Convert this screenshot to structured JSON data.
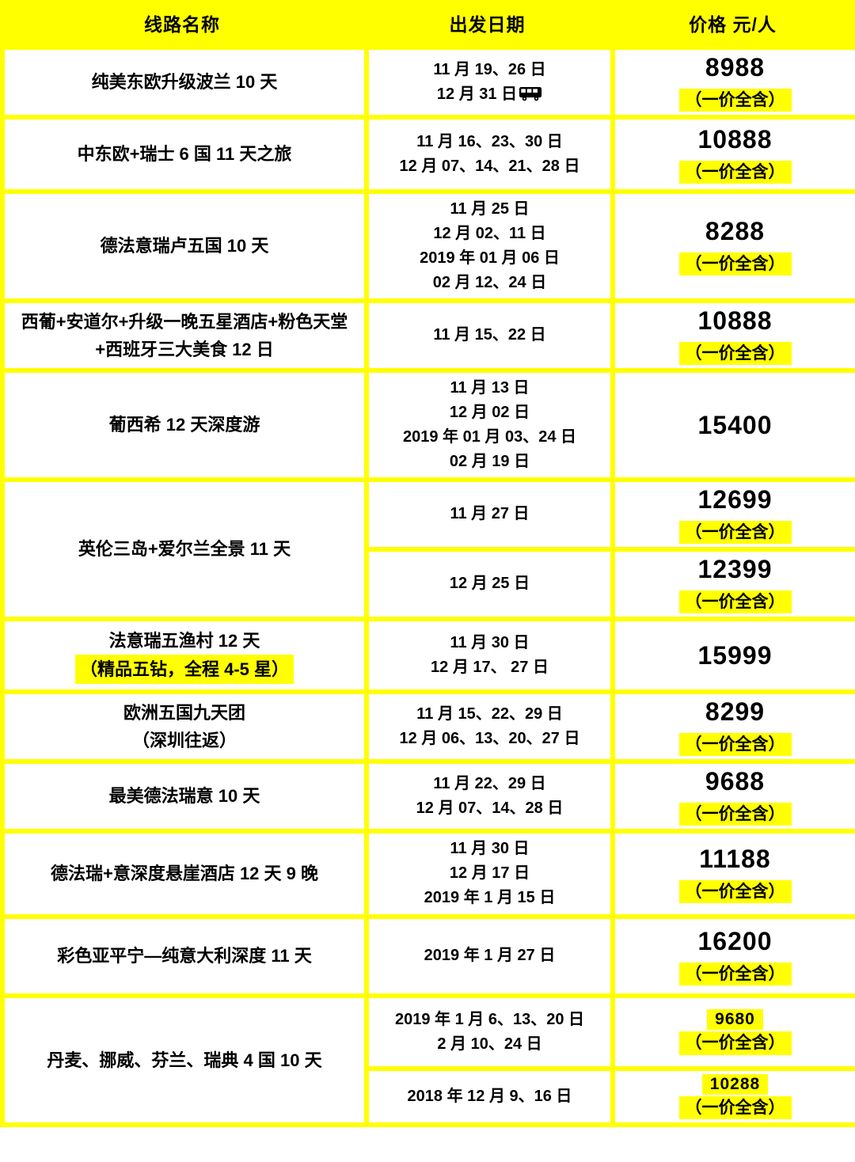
{
  "header": {
    "columns": [
      "线路名称",
      "出发日期",
      "价格 元/人"
    ]
  },
  "colors": {
    "accent_yellow": "#FFFF00",
    "text": "#000000",
    "cell_background": "#FFFFFF"
  },
  "icons": {
    "bus": "bus-icon"
  },
  "table": {
    "rows": [
      {
        "name_lines": [
          {
            "text": "纯美东欧升级波兰 10 天",
            "highlight": false
          }
        ],
        "cells": [
          {
            "dates": [
              "11 月 19、26 日",
              "12 月 31 日"
            ],
            "bus_icon": true,
            "price": "8988",
            "badge": "（一价全含）",
            "price_highlight": false
          }
        ]
      },
      {
        "name_lines": [
          {
            "text": "中东欧+瑞士 6 国 11 天之旅",
            "highlight": false
          }
        ],
        "cells": [
          {
            "dates": [
              "11 月 16、23、30 日",
              "12 月 07、14、21、28 日"
            ],
            "bus_icon": false,
            "price": "10888",
            "badge": "（一价全含）",
            "price_highlight": false
          }
        ]
      },
      {
        "name_lines": [
          {
            "text": "德法意瑞卢五国 10 天",
            "highlight": false
          }
        ],
        "cells": [
          {
            "dates": [
              "11 月 25 日",
              "12 月 02、11 日",
              "2019 年 01 月 06 日",
              "02 月 12、24 日"
            ],
            "bus_icon": false,
            "price": "8288",
            "badge": "（一价全含）",
            "price_highlight": false
          }
        ]
      },
      {
        "name_lines": [
          {
            "text": "西葡+安道尔+升级一晚五星酒店+粉色天堂",
            "highlight": false
          },
          {
            "text": "+西班牙三大美食 12 日",
            "highlight": false
          }
        ],
        "cells": [
          {
            "dates": [
              "11 月 15、22 日"
            ],
            "bus_icon": false,
            "price": "10888",
            "badge": "（一价全含）",
            "price_highlight": false
          }
        ]
      },
      {
        "name_lines": [
          {
            "text": "葡西希 12 天深度游",
            "highlight": false
          }
        ],
        "cells": [
          {
            "dates": [
              "11 月 13 日",
              "12 月 02 日",
              "2019 年 01 月 03、24 日",
              "02 月 19 日"
            ],
            "bus_icon": false,
            "price": "15400",
            "badge": null,
            "price_highlight": false
          }
        ]
      },
      {
        "name_lines": [
          {
            "text": "英伦三岛+爱尔兰全景 11 天",
            "highlight": false
          }
        ],
        "cells": [
          {
            "dates": [
              "11 月 27 日"
            ],
            "bus_icon": false,
            "price": "12699",
            "badge": "（一价全含）",
            "price_highlight": false
          },
          {
            "dates": [
              "12 月 25 日"
            ],
            "bus_icon": false,
            "price": "12399",
            "badge": "（一价全含）",
            "price_highlight": false
          }
        ]
      },
      {
        "name_lines": [
          {
            "text": "法意瑞五渔村 12 天",
            "highlight": false
          },
          {
            "text": "（精品五钻，全程 4-5 星）",
            "highlight": true
          }
        ],
        "cells": [
          {
            "dates": [
              "11 月 30 日",
              "12 月 17、 27 日"
            ],
            "bus_icon": false,
            "price": "15999",
            "badge": null,
            "price_highlight": false
          }
        ]
      },
      {
        "name_lines": [
          {
            "text": "欧洲五国九天团",
            "highlight": false
          },
          {
            "text": "（深圳往返）",
            "highlight": false
          }
        ],
        "cells": [
          {
            "dates": [
              "11 月 15、22、29 日",
              "12 月 06、13、20、27 日"
            ],
            "bus_icon": false,
            "price": "8299",
            "badge": "（一价全含）",
            "price_highlight": false
          }
        ]
      },
      {
        "name_lines": [
          {
            "text": "最美德法瑞意 10 天",
            "highlight": false
          }
        ],
        "cells": [
          {
            "dates": [
              "11 月 22、29 日",
              "12 月 07、14、28 日"
            ],
            "bus_icon": false,
            "price": "9688",
            "badge": "（一价全含）",
            "price_highlight": false
          }
        ]
      },
      {
        "name_lines": [
          {
            "text": "德法瑞+意深度悬崖酒店 12 天 9 晚",
            "highlight": false
          }
        ],
        "cells": [
          {
            "dates": [
              "11 月 30 日",
              "12 月 17 日",
              "2019 年 1 月 15 日"
            ],
            "bus_icon": false,
            "price": "11188",
            "badge": "（一价全含）",
            "price_highlight": false
          }
        ]
      },
      {
        "name_lines": [
          {
            "text": "彩色亚平宁—纯意大利深度 11 天",
            "highlight": false
          }
        ],
        "cells": [
          {
            "dates": [
              "2019 年 1 月 27 日"
            ],
            "bus_icon": false,
            "price": "16200",
            "badge": "（一价全含）",
            "price_highlight": false
          }
        ]
      },
      {
        "name_lines": [
          {
            "text": "丹麦、挪威、芬兰、瑞典 4 国 10 天",
            "highlight": false
          }
        ],
        "cells": [
          {
            "dates": [
              "2019 年 1 月 6、13、20 日",
              "2 月 10、24 日"
            ],
            "bus_icon": false,
            "price": "9680",
            "badge": "（一价全含）",
            "price_highlight": true
          },
          {
            "dates": [
              "2018 年 12 月 9、16 日"
            ],
            "bus_icon": false,
            "price": "10288",
            "badge": "（一价全含）",
            "price_highlight": true
          }
        ]
      }
    ]
  }
}
